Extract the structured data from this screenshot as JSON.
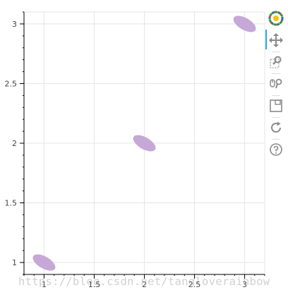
{
  "chart_data": {
    "type": "scatter",
    "marker": "ellipse",
    "title": "",
    "xlabel": "",
    "ylabel": "",
    "xlim": [
      0.8,
      3.2
    ],
    "ylim": [
      0.9,
      3.1
    ],
    "x_ticks": [
      1,
      1.5,
      2,
      2.5,
      3
    ],
    "x_tick_labels": [
      "1",
      "1.5",
      "2",
      "2.5",
      "3"
    ],
    "y_ticks": [
      1,
      1.5,
      2,
      2.5,
      3
    ],
    "y_tick_labels": [
      "1",
      "1.5",
      "2",
      "2.5",
      "3"
    ],
    "grid": true,
    "legend": "none",
    "points": [
      {
        "x": 1,
        "y": 1
      },
      {
        "x": 2,
        "y": 2
      },
      {
        "x": 3,
        "y": 3
      }
    ],
    "ellipse": {
      "width": 0.25,
      "height": 0.1,
      "angle_deg": -30
    },
    "fill_color": "#c5a8d6",
    "grid_color": "#e5e5e5",
    "axis_color": "#000000"
  },
  "toolbar": {
    "tools": [
      {
        "name": "bokeh-logo-icon"
      },
      {
        "name": "pan-icon"
      },
      {
        "name": "box-zoom-icon"
      },
      {
        "name": "wheel-zoom-icon"
      },
      {
        "name": "save-icon"
      },
      {
        "name": "reset-icon"
      },
      {
        "name": "help-icon"
      }
    ],
    "active_color": "#26aae1",
    "icon_color": "#8a8a8a"
  },
  "watermark": "https://blog.csdn.net/tangloverainbow"
}
